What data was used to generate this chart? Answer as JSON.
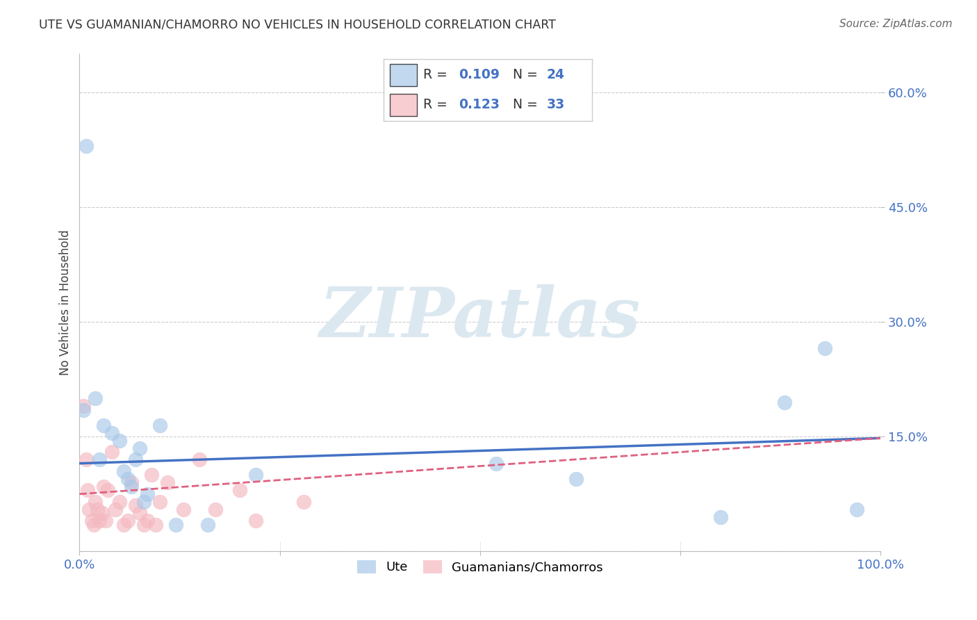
{
  "title": "UTE VS GUAMANIAN/CHAMORRO NO VEHICLES IN HOUSEHOLD CORRELATION CHART",
  "source": "Source: ZipAtlas.com",
  "ylabel": "No Vehicles in Household",
  "xlim": [
    0,
    1.0
  ],
  "ylim": [
    0,
    0.65
  ],
  "xticks": [
    0.0,
    0.25,
    0.5,
    0.75,
    1.0
  ],
  "xticklabels": [
    "0.0%",
    "",
    "",
    "",
    "100.0%"
  ],
  "yticks": [
    0.15,
    0.3,
    0.45,
    0.6
  ],
  "yticklabels": [
    "15.0%",
    "30.0%",
    "45.0%",
    "60.0%"
  ],
  "ute_R": 0.109,
  "ute_N": 24,
  "guam_R": 0.123,
  "guam_N": 33,
  "ute_color": "#a8c8e8",
  "guam_color": "#f4b8c0",
  "ute_line_color": "#4472c4",
  "guam_line_color": "#e06080",
  "legend_value_color": "#4472c4",
  "tick_color": "#4472c4",
  "watermark_text": "ZIPatlas",
  "watermark_color": "#dce8f0",
  "ute_line_start_y": 0.115,
  "ute_line_end_y": 0.148,
  "guam_line_start_y": 0.075,
  "guam_line_end_y": 0.148,
  "ute_points_x": [
    0.008,
    0.02,
    0.03,
    0.04,
    0.05,
    0.055,
    0.06,
    0.065,
    0.07,
    0.075,
    0.08,
    0.085,
    0.1,
    0.12,
    0.16,
    0.22,
    0.52,
    0.62,
    0.8,
    0.88,
    0.93,
    0.97,
    0.005,
    0.025
  ],
  "ute_points_y": [
    0.53,
    0.2,
    0.165,
    0.155,
    0.145,
    0.105,
    0.095,
    0.085,
    0.12,
    0.135,
    0.065,
    0.075,
    0.165,
    0.035,
    0.035,
    0.1,
    0.115,
    0.095,
    0.045,
    0.195,
    0.265,
    0.055,
    0.185,
    0.12
  ],
  "guam_points_x": [
    0.005,
    0.008,
    0.01,
    0.012,
    0.015,
    0.018,
    0.02,
    0.022,
    0.025,
    0.028,
    0.03,
    0.033,
    0.035,
    0.04,
    0.045,
    0.05,
    0.055,
    0.06,
    0.065,
    0.07,
    0.075,
    0.08,
    0.085,
    0.09,
    0.095,
    0.1,
    0.11,
    0.13,
    0.15,
    0.17,
    0.2,
    0.22,
    0.28
  ],
  "guam_points_y": [
    0.19,
    0.12,
    0.08,
    0.055,
    0.04,
    0.035,
    0.065,
    0.055,
    0.04,
    0.05,
    0.085,
    0.04,
    0.08,
    0.13,
    0.055,
    0.065,
    0.035,
    0.04,
    0.09,
    0.06,
    0.05,
    0.035,
    0.04,
    0.1,
    0.035,
    0.065,
    0.09,
    0.055,
    0.12,
    0.055,
    0.08,
    0.04,
    0.065
  ]
}
